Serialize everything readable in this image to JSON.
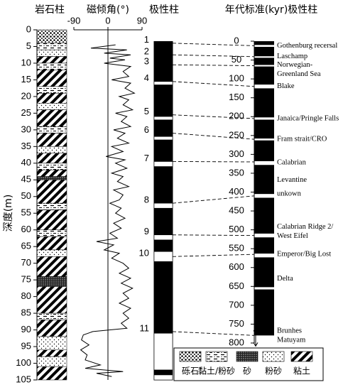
{
  "headers": [
    "岩石柱",
    "磁倾角(°)",
    "极性柱",
    "年代标准(kyr)极性柱"
  ],
  "depth_axis": {
    "label": "深度(m)",
    "ylim": [
      0,
      105
    ],
    "yticks": [
      0,
      5,
      10,
      15,
      20,
      25,
      30,
      35,
      40,
      45,
      50,
      55,
      60,
      65,
      70,
      75,
      80,
      85,
      90,
      95,
      100,
      105
    ]
  },
  "inclination": {
    "xlim": [
      -90,
      90
    ],
    "xticks": [
      -90,
      0,
      90
    ],
    "depth": [
      4.5,
      5.5,
      6,
      7,
      7.5,
      8.5,
      9,
      10,
      11,
      12.5,
      14,
      15,
      16,
      17.5,
      19,
      20,
      21,
      22.5,
      24,
      25,
      26,
      27.5,
      29,
      30,
      31,
      32.5,
      34,
      35,
      36.5,
      38,
      39,
      40,
      41.5,
      43,
      44,
      45.5,
      47,
      48,
      49.5,
      51,
      52,
      53.5,
      55,
      56.5,
      58,
      59.5,
      61,
      62.5,
      63.5,
      64.5,
      66,
      67,
      68.5,
      70,
      71.5,
      73,
      74.5,
      76,
      77.5,
      79,
      80.5,
      82,
      83.5,
      85,
      86.5,
      88,
      89.5,
      90.5,
      91.5,
      93,
      94.5,
      96,
      97.5,
      99,
      100.5,
      101.5,
      102.5,
      103,
      104
    ],
    "values": [
      20,
      -45,
      50,
      -10,
      60,
      5,
      45,
      -10,
      60,
      40,
      55,
      10,
      60,
      45,
      70,
      30,
      55,
      40,
      65,
      20,
      50,
      35,
      60,
      15,
      45,
      25,
      55,
      10,
      40,
      -5,
      45,
      20,
      50,
      10,
      40,
      25,
      55,
      15,
      40,
      30,
      5,
      35,
      20,
      45,
      15,
      35,
      5,
      25,
      -30,
      15,
      -10,
      30,
      10,
      40,
      55,
      30,
      60,
      35,
      65,
      40,
      55,
      30,
      60,
      40,
      55,
      35,
      50,
      -40,
      -65,
      -70,
      -50,
      -72,
      -55,
      -60,
      -20,
      -60,
      40,
      -30,
      10
    ]
  },
  "lithology": [
    {
      "top": 0,
      "bottom": 4,
      "lithology": "砾石"
    },
    {
      "top": 4,
      "bottom": 6,
      "lithology": "黏土/粉砂"
    },
    {
      "top": 6,
      "bottom": 8,
      "lithology": "粉砂"
    },
    {
      "top": 8,
      "bottom": 10,
      "lithology": "粘土"
    },
    {
      "top": 10,
      "bottom": 12,
      "lithology": "黏土/粉砂"
    },
    {
      "top": 12,
      "bottom": 17,
      "lithology": "粘土"
    },
    {
      "top": 17,
      "bottom": 19,
      "lithology": "黏土/粉砂"
    },
    {
      "top": 19,
      "bottom": 22,
      "lithology": "粘土"
    },
    {
      "top": 22,
      "bottom": 24,
      "lithology": "粉砂"
    },
    {
      "top": 24,
      "bottom": 29,
      "lithology": "粘土"
    },
    {
      "top": 29,
      "bottom": 31,
      "lithology": "黏土/粉砂"
    },
    {
      "top": 31,
      "bottom": 35,
      "lithology": "粘土"
    },
    {
      "top": 35,
      "bottom": 37,
      "lithology": "粉砂"
    },
    {
      "top": 37,
      "bottom": 40,
      "lithology": "粘土"
    },
    {
      "top": 40,
      "bottom": 42,
      "lithology": "黏土/粉砂"
    },
    {
      "top": 42,
      "bottom": 44,
      "lithology": "粘土"
    },
    {
      "top": 44,
      "bottom": 45,
      "lithology": "砂"
    },
    {
      "top": 45,
      "bottom": 52,
      "lithology": "粘土"
    },
    {
      "top": 52,
      "bottom": 54,
      "lithology": "黏土/粉砂"
    },
    {
      "top": 54,
      "bottom": 60,
      "lithology": "粘土"
    },
    {
      "top": 60,
      "bottom": 62,
      "lithology": "黏土/粉砂"
    },
    {
      "top": 62,
      "bottom": 66,
      "lithology": "粘土"
    },
    {
      "top": 66,
      "bottom": 68,
      "lithology": "粉砂"
    },
    {
      "top": 68,
      "bottom": 74,
      "lithology": "粘土"
    },
    {
      "top": 74,
      "bottom": 77,
      "lithology": "砂"
    },
    {
      "top": 77,
      "bottom": 85,
      "lithology": "粘土"
    },
    {
      "top": 85,
      "bottom": 87,
      "lithology": "黏土/粉砂"
    },
    {
      "top": 87,
      "bottom": 92,
      "lithology": "粘土"
    },
    {
      "top": 92,
      "bottom": 96,
      "lithology": "粉砂"
    },
    {
      "top": 96,
      "bottom": 98,
      "lithology": "粘土"
    },
    {
      "top": 98,
      "bottom": 101,
      "lithology": "粉砂"
    },
    {
      "top": 101,
      "bottom": 105,
      "lithology": "粘土"
    }
  ],
  "polarity": {
    "top": 3.5,
    "bottom": 105,
    "normal_gaps": [
      [
        15.5,
        16.5
      ],
      [
        26,
        27
      ],
      [
        32,
        33
      ],
      [
        39.5,
        41
      ],
      [
        52,
        53.5
      ],
      [
        61.5,
        63
      ],
      [
        66.5,
        69.5
      ],
      [
        91,
        102
      ],
      [
        103.5,
        105
      ]
    ],
    "labels": [
      {
        "label": "1",
        "depth": 4,
        "age": 12
      },
      {
        "label": "2",
        "depth": 7.5,
        "age": 41
      },
      {
        "label": "3",
        "depth": 10.5,
        "age": 65
      },
      {
        "label": "4",
        "depth": 15.5,
        "age": 120
      },
      {
        "label": "5",
        "depth": 25.5,
        "age": 205
      },
      {
        "label": "6",
        "depth": 31,
        "age": 260
      },
      {
        "label": "7",
        "depth": 39.5,
        "age": 320
      },
      {
        "label": "8",
        "depth": 52,
        "age": 410
      },
      {
        "label": "9",
        "depth": 61.5,
        "age": 515
      },
      {
        "label": "10",
        "depth": 68,
        "age": 565
      },
      {
        "label": "11",
        "depth": 90.5,
        "age": 780
      }
    ]
  },
  "age_scale": {
    "ylim": [
      0,
      800
    ],
    "yticks": [
      0,
      50,
      100,
      150,
      200,
      250,
      300,
      350,
      400,
      450,
      500,
      550,
      600,
      650,
      700,
      750,
      800
    ],
    "top": 0,
    "bottom": 780,
    "normal_gaps": [
      [
        10,
        15
      ],
      [
        40,
        44
      ],
      [
        63,
        67
      ],
      [
        115,
        125
      ],
      [
        202,
        208
      ],
      [
        258,
        263
      ],
      [
        318,
        328
      ],
      [
        405,
        415
      ],
      [
        510,
        520
      ],
      [
        563,
        573
      ],
      [
        652,
        658
      ]
    ],
    "events": [
      {
        "lines": [
          "Gothenburg recersal"
        ],
        "age": 12
      },
      {
        "lines": [
          "Laschamp"
        ],
        "age": 41
      },
      {
        "lines": [
          "Norwegian-",
          "Greenland Sea"
        ],
        "age": 75
      },
      {
        "lines": [
          "Blake"
        ],
        "age": 120
      },
      {
        "lines": [
          "Janaica/Pringle Falls"
        ],
        "age": 205
      },
      {
        "lines": [
          "Fram strait/CRO"
        ],
        "age": 260
      },
      {
        "lines": [
          "Calabrian"
        ],
        "age": 322
      },
      {
        "lines": [
          "Levantine"
        ],
        "age": 368
      },
      {
        "lines": [
          "unkown"
        ],
        "age": 405
      },
      {
        "lines": [
          "Calabrian Ridge 2/",
          "West Eifel"
        ],
        "age": 505
      },
      {
        "lines": [
          "Emperor/Big Lost"
        ],
        "age": 565
      },
      {
        "lines": [
          "Delta"
        ],
        "age": 630
      },
      {
        "lines": [
          "Brunhes",
          "Matuyam"
        ],
        "age": 780
      }
    ]
  },
  "legend": [
    "砾石",
    "黏土/粉砂",
    "砂",
    "粉砂",
    "粘土"
  ]
}
